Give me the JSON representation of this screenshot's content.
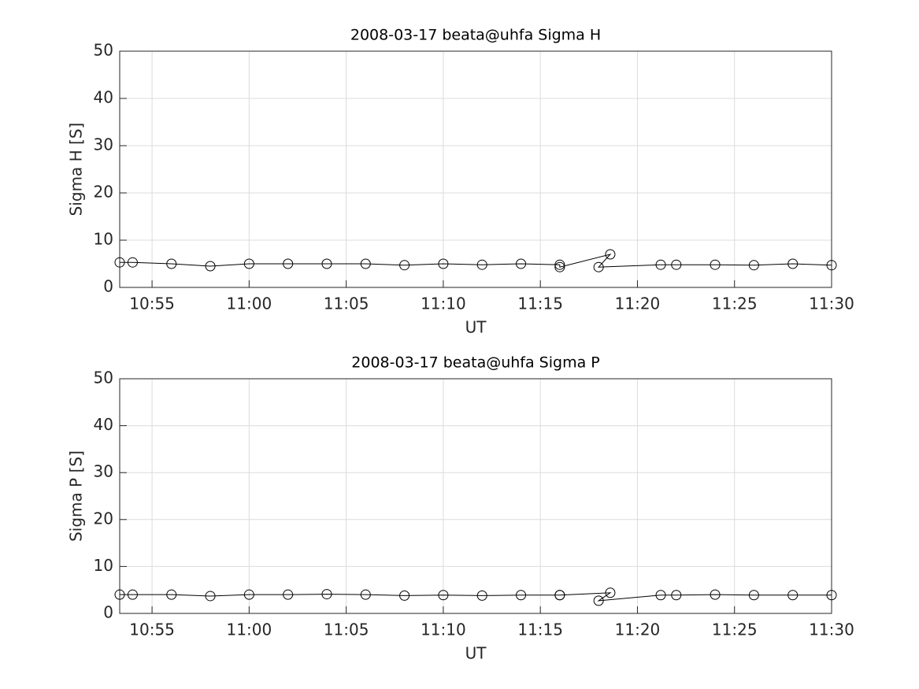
{
  "chart_data": [
    {
      "type": "line",
      "title": "2008-03-17  beata@uhfa Sigma H",
      "xlabel": "UT",
      "ylabel": "Sigma H [S]",
      "x": [
        "10:53:20",
        "10:54:00",
        "10:56:00",
        "10:58:00",
        "11:00:00",
        "11:02:00",
        "11:04:00",
        "11:06:00",
        "11:08:00",
        "11:10:00",
        "11:12:00",
        "11:14:00",
        "11:16:00",
        "11:16:00",
        "11:18:36",
        "11:18:00",
        "11:21:12",
        "11:22:00",
        "11:24:00",
        "11:26:00",
        "11:28:00",
        "11:30:00"
      ],
      "series": [
        {
          "color": "#000000",
          "marker": "o",
          "values": [
            5.3,
            5.3,
            5.0,
            4.5,
            5.0,
            5.0,
            5.0,
            5.0,
            4.7,
            5.0,
            4.8,
            5.0,
            4.8,
            4.3,
            7.0,
            4.3,
            4.8,
            4.8,
            4.8,
            4.7,
            5.0,
            4.7
          ]
        }
      ],
      "xlim": [
        "10:53:20",
        "11:30:00"
      ],
      "xticks": [
        "10:55",
        "11:00",
        "11:05",
        "11:10",
        "11:15",
        "11:20",
        "11:25",
        "11:30"
      ],
      "ylim": [
        0,
        50
      ],
      "yticks": [
        0,
        10,
        20,
        30,
        40,
        50
      ],
      "grid": true
    },
    {
      "type": "line",
      "title": "2008-03-17  beata@uhfa Sigma P",
      "xlabel": "UT",
      "ylabel": "Sigma P [S]",
      "x": [
        "10:53:20",
        "10:54:00",
        "10:56:00",
        "10:58:00",
        "11:00:00",
        "11:02:00",
        "11:04:00",
        "11:06:00",
        "11:08:00",
        "11:10:00",
        "11:12:00",
        "11:14:00",
        "11:16:00",
        "11:16:00",
        "11:18:36",
        "11:18:00",
        "11:21:12",
        "11:22:00",
        "11:24:00",
        "11:26:00",
        "11:28:00",
        "11:30:00"
      ],
      "series": [
        {
          "color": "#000000",
          "marker": "o",
          "values": [
            4.0,
            4.0,
            4.0,
            3.7,
            4.0,
            4.0,
            4.1,
            4.0,
            3.8,
            3.9,
            3.8,
            3.9,
            3.9,
            3.9,
            4.4,
            2.7,
            3.9,
            3.9,
            4.0,
            3.9,
            3.9,
            3.9
          ]
        }
      ],
      "xlim": [
        "10:53:20",
        "11:30:00"
      ],
      "xticks": [
        "10:55",
        "11:00",
        "11:05",
        "11:10",
        "11:15",
        "11:20",
        "11:25",
        "11:30"
      ],
      "ylim": [
        0,
        50
      ],
      "yticks": [
        0,
        10,
        20,
        30,
        40,
        50
      ],
      "grid": true
    }
  ]
}
